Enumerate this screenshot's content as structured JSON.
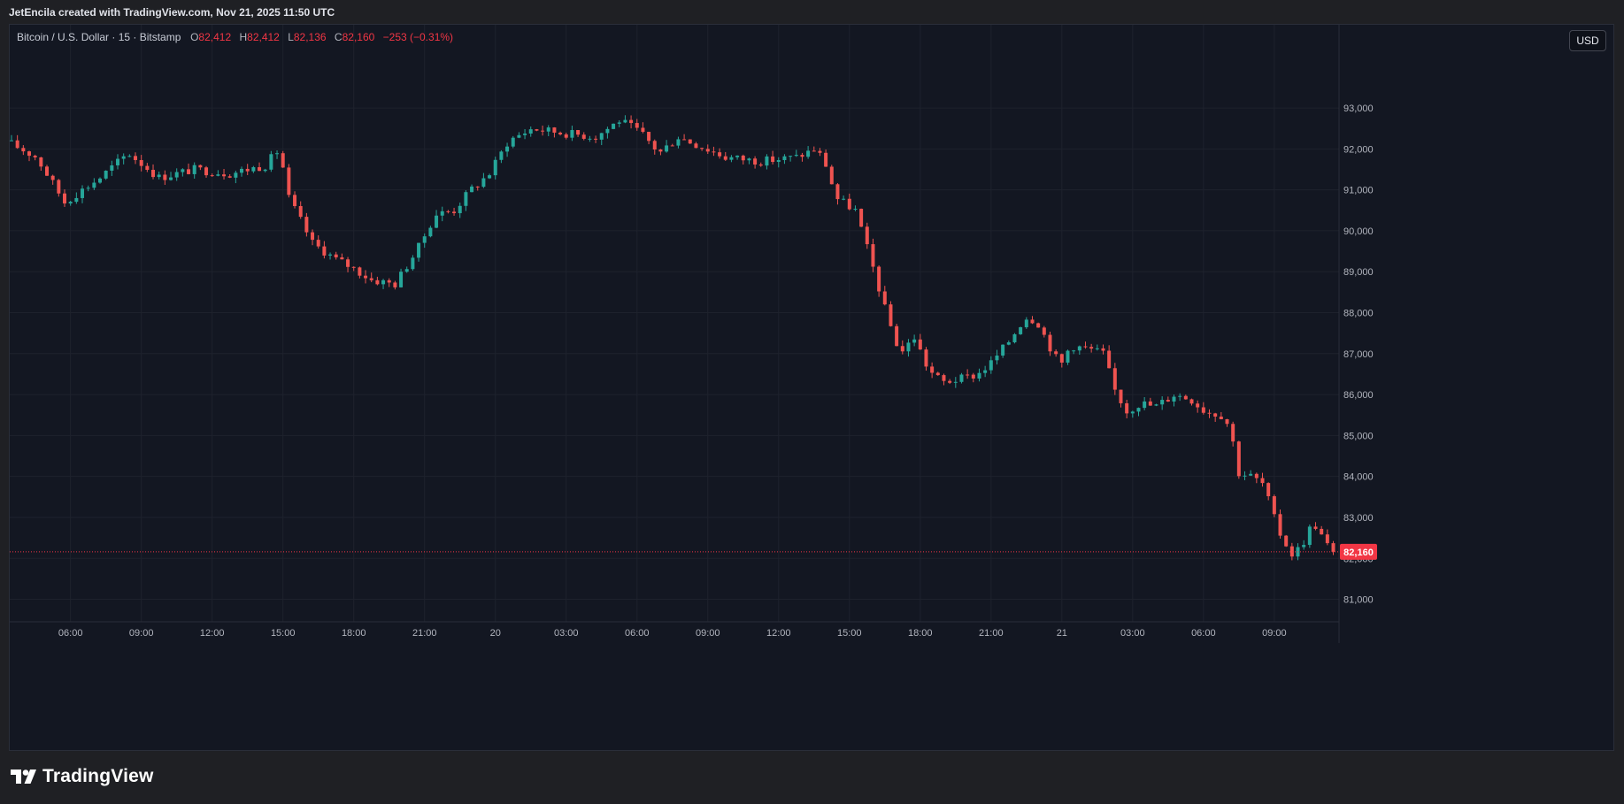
{
  "header": {
    "credit": "JetEncila created with TradingView.com, Nov 21, 2025 11:50 UTC"
  },
  "legend": {
    "symbol": "Bitcoin / U.S. Dollar · 15 · Bitstamp",
    "o_label": "O",
    "o_value": "82,412",
    "h_label": "H",
    "h_value": "82,412",
    "l_label": "L",
    "l_value": "82,136",
    "c_label": "C",
    "c_value": "82,160",
    "change": "−253 (−0.31%)"
  },
  "toolbar": {
    "currency": "USD"
  },
  "price_label": "82,160",
  "brand": {
    "name": "TradingView"
  },
  "colors": {
    "up": "#26a69a",
    "down": "#ef5350",
    "background": "#131722",
    "grid": "#1e222d",
    "price_line": "#f23645"
  },
  "chart_data": {
    "type": "candlestick",
    "title": "Bitcoin / U.S. Dollar · 15 · Bitstamp",
    "interval_minutes": 15,
    "y_ticks": [
      81000,
      82000,
      83000,
      84000,
      85000,
      86000,
      87000,
      88000,
      89000,
      90000,
      91000,
      92000,
      93000
    ],
    "y_tick_labels": [
      "81,000",
      "82,000",
      "83,000",
      "84,000",
      "85,000",
      "86,000",
      "87,000",
      "88,000",
      "89,000",
      "90,000",
      "91,000",
      "92,000",
      "93,000"
    ],
    "x_tick_labels": [
      "06:00",
      "09:00",
      "12:00",
      "15:00",
      "18:00",
      "21:00",
      "20",
      "03:00",
      "06:00",
      "09:00",
      "12:00",
      "15:00",
      "18:00",
      "21:00",
      "21",
      "03:00",
      "06:00",
      "09:00"
    ],
    "x_tick_hours": [
      6,
      9,
      12,
      15,
      18,
      21,
      24,
      27,
      30,
      33,
      36,
      39,
      42,
      45,
      48,
      51,
      54,
      57
    ],
    "first_candle_hour": 3.5,
    "ylim": [
      80450,
      94600
    ],
    "last_price": 82160,
    "trend_keypoints": [
      [
        3.5,
        92200
      ],
      [
        4.8,
        91800
      ],
      [
        6.0,
        90700
      ],
      [
        7.5,
        91300
      ],
      [
        8.7,
        91900
      ],
      [
        10.0,
        91300
      ],
      [
        11.5,
        91500
      ],
      [
        13.0,
        91400
      ],
      [
        14.5,
        91600
      ],
      [
        15.1,
        92000
      ],
      [
        15.5,
        90800
      ],
      [
        16.5,
        89700
      ],
      [
        17.5,
        89300
      ],
      [
        18.2,
        89100
      ],
      [
        19.0,
        88800
      ],
      [
        20.0,
        88700
      ],
      [
        21.0,
        89600
      ],
      [
        21.7,
        90400
      ],
      [
        22.5,
        90500
      ],
      [
        23.2,
        91000
      ],
      [
        24.0,
        91400
      ],
      [
        24.8,
        92200
      ],
      [
        25.8,
        92500
      ],
      [
        27.0,
        92400
      ],
      [
        28.5,
        92300
      ],
      [
        29.5,
        92700
      ],
      [
        30.4,
        92400
      ],
      [
        31.2,
        91900
      ],
      [
        32.0,
        92300
      ],
      [
        33.2,
        92000
      ],
      [
        34.0,
        91800
      ],
      [
        35.5,
        91700
      ],
      [
        37.0,
        91800
      ],
      [
        37.8,
        92000
      ],
      [
        38.2,
        91700
      ],
      [
        38.7,
        90800
      ],
      [
        39.5,
        90500
      ],
      [
        40.2,
        89200
      ],
      [
        40.8,
        88000
      ],
      [
        41.4,
        87000
      ],
      [
        42.0,
        87400
      ],
      [
        42.6,
        86600
      ],
      [
        43.2,
        86300
      ],
      [
        44.1,
        86400
      ],
      [
        44.7,
        86500
      ],
      [
        45.3,
        86800
      ],
      [
        46.0,
        87300
      ],
      [
        46.7,
        87900
      ],
      [
        47.2,
        87800
      ],
      [
        47.8,
        87100
      ],
      [
        48.2,
        86700
      ],
      [
        48.6,
        87200
      ],
      [
        49.5,
        87100
      ],
      [
        50.0,
        87000
      ],
      [
        50.5,
        86100
      ],
      [
        51.0,
        85600
      ],
      [
        51.6,
        85800
      ],
      [
        52.2,
        85700
      ],
      [
        53.0,
        86000
      ],
      [
        53.7,
        85900
      ],
      [
        54.3,
        85600
      ],
      [
        55.0,
        85500
      ],
      [
        55.4,
        85200
      ],
      [
        55.7,
        84100
      ],
      [
        56.3,
        84000
      ],
      [
        56.8,
        83800
      ],
      [
        57.4,
        82700
      ],
      [
        58.0,
        82100
      ],
      [
        58.4,
        82300
      ],
      [
        58.9,
        82900
      ],
      [
        59.4,
        82400
      ],
      [
        59.7,
        82160
      ]
    ]
  }
}
